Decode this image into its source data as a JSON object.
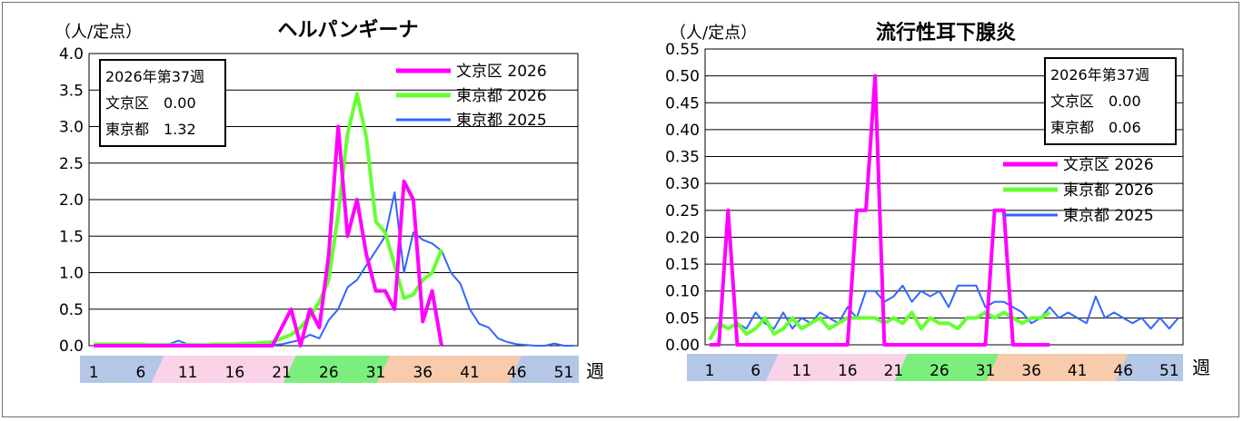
{
  "week_unit": "週",
  "week_ticks": [
    1,
    6,
    11,
    16,
    21,
    26,
    31,
    36,
    41,
    46,
    51
  ],
  "season_colors": [
    "#b4c7e7",
    "#fbd3e9",
    "#7cee7c",
    "#f8cbad",
    "#b4c7e7"
  ],
  "chart_data": [
    {
      "type": "line",
      "title": "ヘルパンギーナ",
      "ylabel": "（人/定点）",
      "ylim": [
        0,
        4.0
      ],
      "yticks": [
        "0.0",
        "0.5",
        "1.0",
        "1.5",
        "2.0",
        "2.5",
        "3.0",
        "3.5",
        "4.0"
      ],
      "xlabel": "週",
      "infobox": [
        "2026年第37週",
        "文京区　0.00",
        "東京都　1.32"
      ],
      "series": [
        {
          "name": "文京区 2026",
          "color": "#ff00ff",
          "width": 4,
          "values": [
            0,
            0,
            0,
            0,
            0,
            0,
            0,
            0,
            0,
            0,
            0,
            0,
            0,
            0,
            0,
            0,
            0,
            0,
            0,
            0,
            0.25,
            0.5,
            0,
            0.5,
            0.25,
            1.25,
            3.0,
            1.5,
            2.0,
            1.25,
            0.75,
            0.75,
            0.5,
            2.25,
            2.0,
            0.33,
            0.75,
            0
          ]
        },
        {
          "name": "東京都 2026",
          "color": "#66ff33",
          "width": 4,
          "values": [
            0.02,
            0.02,
            0.02,
            0.02,
            0.02,
            0.02,
            0.01,
            0.01,
            0.01,
            0.01,
            0.01,
            0.01,
            0.01,
            0.02,
            0.02,
            0.02,
            0.03,
            0.03,
            0.04,
            0.05,
            0.1,
            0.15,
            0.25,
            0.4,
            0.6,
            0.9,
            1.8,
            2.9,
            3.45,
            2.85,
            1.7,
            1.55,
            1.1,
            0.65,
            0.7,
            0.9,
            1.0,
            1.32
          ]
        },
        {
          "name": "東京都 2025",
          "color": "#3366ff",
          "width": 2,
          "values": [
            0.01,
            0.02,
            0.02,
            0.02,
            0.02,
            0.02,
            0.02,
            0.02,
            0.02,
            0.07,
            0.02,
            0.02,
            0.01,
            0.02,
            0.02,
            0.02,
            0.02,
            0.01,
            0.02,
            0.01,
            0.02,
            0.05,
            0.08,
            0.15,
            0.1,
            0.35,
            0.5,
            0.8,
            0.9,
            1.1,
            1.3,
            1.5,
            2.1,
            1.0,
            1.55,
            1.45,
            1.4,
            1.3,
            1.0,
            0.85,
            0.5,
            0.3,
            0.25,
            0.1,
            0.05,
            0.02,
            0.01,
            0.0,
            0.0,
            0.03,
            0.0,
            0.0
          ]
        }
      ]
    },
    {
      "type": "line",
      "title": "流行性耳下腺炎",
      "ylabel": "（人/定点）",
      "ylim": [
        0,
        0.55
      ],
      "yticks": [
        "0.00",
        "0.05",
        "0.10",
        "0.15",
        "0.20",
        "0.25",
        "0.30",
        "0.35",
        "0.40",
        "0.45",
        "0.50",
        "0.55"
      ],
      "xlabel": "週",
      "infobox": [
        "2026年第37週",
        "文京区　0.00",
        "東京都　0.06"
      ],
      "series": [
        {
          "name": "文京区 2026",
          "color": "#ff00ff",
          "width": 4,
          "values": [
            0,
            0,
            0.25,
            0,
            0,
            0,
            0,
            0,
            0,
            0,
            0,
            0,
            0,
            0,
            0,
            0,
            0.25,
            0.25,
            0.5,
            0,
            0,
            0,
            0,
            0,
            0,
            0,
            0,
            0,
            0,
            0,
            0,
            0.25,
            0.25,
            0,
            0,
            0,
            0,
            0
          ]
        },
        {
          "name": "東京都 2026",
          "color": "#66ff33",
          "width": 4,
          "values": [
            0.01,
            0.04,
            0.03,
            0.04,
            0.02,
            0.03,
            0.05,
            0.02,
            0.03,
            0.05,
            0.03,
            0.04,
            0.05,
            0.03,
            0.04,
            0.05,
            0.05,
            0.05,
            0.05,
            0.04,
            0.05,
            0.04,
            0.06,
            0.03,
            0.05,
            0.04,
            0.04,
            0.03,
            0.05,
            0.05,
            0.06,
            0.05,
            0.06,
            0.05,
            0.04,
            0.05,
            0.05,
            0.06
          ]
        },
        {
          "name": "東京都 2025",
          "color": "#3366ff",
          "width": 2,
          "values": [
            0.01,
            0.04,
            0.03,
            0.04,
            0.03,
            0.06,
            0.04,
            0.03,
            0.06,
            0.03,
            0.05,
            0.04,
            0.06,
            0.05,
            0.04,
            0.07,
            0.05,
            0.1,
            0.1,
            0.08,
            0.09,
            0.11,
            0.08,
            0.1,
            0.09,
            0.1,
            0.07,
            0.11,
            0.11,
            0.11,
            0.07,
            0.08,
            0.08,
            0.07,
            0.06,
            0.04,
            0.05,
            0.07,
            0.05,
            0.06,
            0.05,
            0.04,
            0.09,
            0.05,
            0.06,
            0.05,
            0.04,
            0.05,
            0.03,
            0.05,
            0.03,
            0.05
          ]
        }
      ]
    }
  ]
}
